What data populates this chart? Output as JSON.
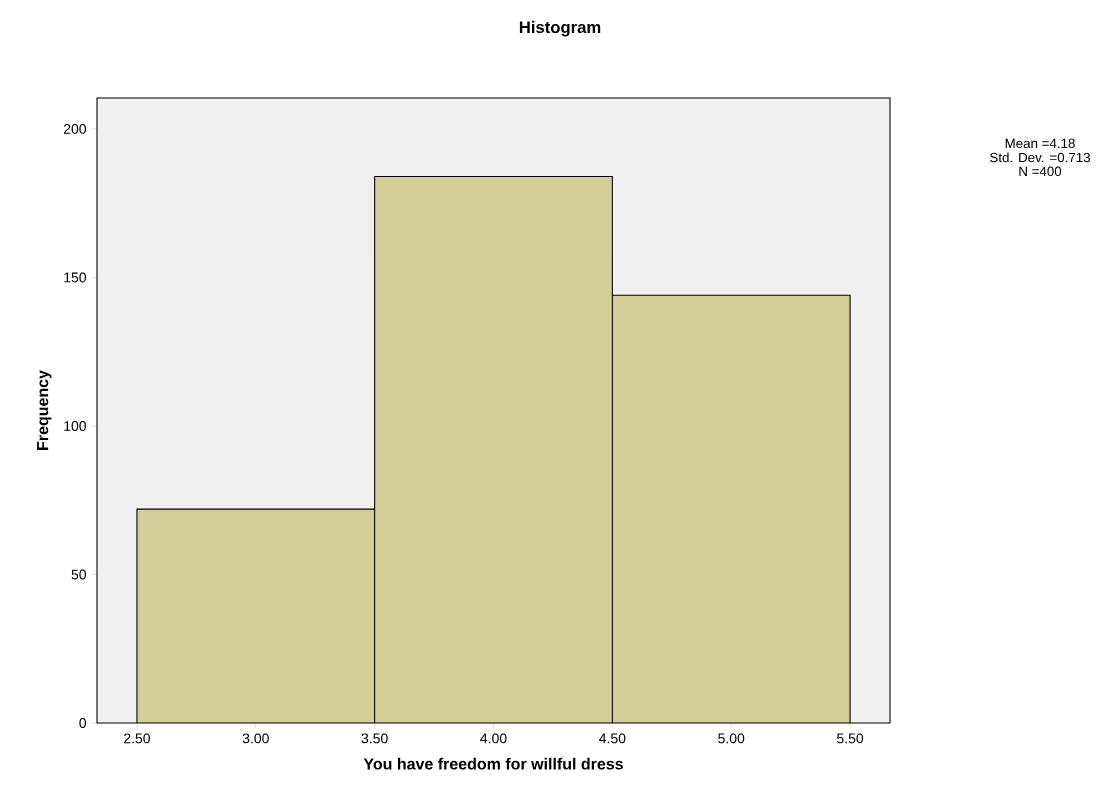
{
  "chart_data": {
    "type": "histogram",
    "title": "Histogram",
    "xlabel": "You have freedom for willful dress",
    "ylabel": "Frequency",
    "bins": [
      2.5,
      3.5,
      4.5,
      5.5
    ],
    "values": [
      72,
      184,
      144
    ],
    "color": "#d3ce97",
    "xlim": [
      2.332,
      5.668
    ],
    "ylim": [
      0,
      210.4
    ],
    "xticks": [
      {
        "value": 2.5,
        "label": "2.50"
      },
      {
        "value": 3.0,
        "label": "3.00"
      },
      {
        "value": 3.5,
        "label": "3.50"
      },
      {
        "value": 4.0,
        "label": "4.00"
      },
      {
        "value": 4.5,
        "label": "4.50"
      },
      {
        "value": 5.0,
        "label": "5.00"
      },
      {
        "value": 5.5,
        "label": "5.50"
      }
    ],
    "yticks": [
      0,
      50,
      100,
      150,
      200
    ],
    "annotations": [
      "Mean =4.18",
      "Std. Dev. =0.713",
      "N =400"
    ]
  }
}
